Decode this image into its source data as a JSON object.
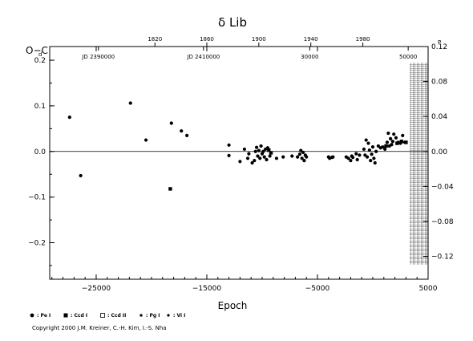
{
  "chart_data": {
    "type": "scatter",
    "title": "δ Lib",
    "xlabel": "Epoch",
    "ylabel_left": "O−C",
    "xlim": [
      -29200,
      5000
    ],
    "ylim_left": [
      -0.28,
      0.23
    ],
    "ylim_right": [
      -0.12,
      0.12
    ],
    "x_ticks": [
      -25000,
      -15000,
      -5000,
      5000
    ],
    "x_tick_labels": [
      "−25000",
      "−15000",
      "−5000",
      "5000"
    ],
    "y_left_ticks": [
      -0.2,
      -0.1,
      0.0,
      0.1,
      0.2
    ],
    "y_left_tick_labels": [
      "−0.2",
      "−0.1",
      "0.0",
      "0.1",
      "0.2"
    ],
    "y_left_unit": "d",
    "y_right_ticks": [
      -0.12,
      -0.08,
      -0.04,
      0.0,
      0.04,
      0.08,
      0.12
    ],
    "y_right_tick_labels": [
      "−0.12",
      "−0.08",
      "−0.04",
      "0.00",
      "0.04",
      "0.08",
      "0.12"
    ],
    "y_right_unit": "P",
    "top_year_ticks": [
      {
        "epoch": -19690,
        "label": "1820"
      },
      {
        "epoch": -15000,
        "label": "1860"
      },
      {
        "epoch": -10300,
        "label": "1900"
      },
      {
        "epoch": -5600,
        "label": "1940"
      },
      {
        "epoch": -900,
        "label": "1980"
      }
    ],
    "jd_labels": [
      {
        "epoch": -24800,
        "label": "JD 2390000"
      },
      {
        "epoch": -15300,
        "label": "JD 2410000"
      },
      {
        "epoch": -5700,
        "label": "30000"
      },
      {
        "epoch": 3200,
        "label": "50000"
      }
    ],
    "hatched_region_x": [
      3300,
      5000
    ],
    "series": [
      {
        "name": ": Pe I",
        "marker": "circle",
        "points": [
          [
            -27400,
            0.075
          ],
          [
            -26400,
            -0.053
          ],
          [
            -21900,
            0.106
          ],
          [
            -20500,
            0.025
          ],
          [
            -18200,
            0.062
          ],
          [
            -17300,
            0.045
          ],
          [
            -16800,
            0.035
          ],
          [
            -13000,
            0.014
          ],
          [
            -13000,
            -0.009
          ],
          [
            -12000,
            -0.022
          ],
          [
            -11600,
            0.005
          ],
          [
            -11300,
            -0.015
          ],
          [
            -11200,
            -0.005
          ],
          [
            -10900,
            -0.025
          ],
          [
            -10700,
            -0.02
          ],
          [
            -10600,
            0.0
          ],
          [
            -10500,
            0.009
          ],
          [
            -10400,
            -0.01
          ],
          [
            -10300,
            0.002
          ],
          [
            -10200,
            -0.015
          ],
          [
            -10100,
            0.012
          ],
          [
            -10000,
            -0.005
          ],
          [
            -9900,
            0.0
          ],
          [
            -9800,
            -0.012
          ],
          [
            -9700,
            0.005
          ],
          [
            -9600,
            -0.018
          ],
          [
            -9500,
            0.008
          ],
          [
            -9300,
            -0.01
          ],
          [
            -8700,
            -0.015
          ],
          [
            -8100,
            -0.012
          ],
          [
            -7300,
            -0.01
          ],
          [
            -6800,
            -0.012
          ],
          [
            -6600,
            -0.006
          ],
          [
            -6500,
            0.002
          ],
          [
            -6400,
            -0.015
          ],
          [
            -6300,
            -0.002
          ],
          [
            -6200,
            -0.02
          ],
          [
            -6100,
            -0.008
          ],
          [
            -6000,
            -0.012
          ],
          [
            -4000,
            -0.012
          ],
          [
            -3900,
            -0.015
          ],
          [
            -3700,
            -0.013
          ],
          [
            -3600,
            -0.012
          ],
          [
            -2400,
            -0.012
          ],
          [
            -2200,
            -0.015
          ],
          [
            -2000,
            -0.02
          ],
          [
            -1900,
            -0.01
          ],
          [
            -1800,
            -0.013
          ],
          [
            -1500,
            -0.005
          ],
          [
            -1400,
            -0.018
          ],
          [
            -1200,
            -0.008
          ],
          [
            -800,
            0.005
          ],
          [
            -700,
            -0.008
          ],
          [
            -600,
            0.025
          ],
          [
            -500,
            -0.012
          ],
          [
            -400,
            0.018
          ],
          [
            -300,
            0.003
          ],
          [
            -200,
            -0.02
          ],
          [
            -100,
            -0.006
          ],
          [
            0,
            0.01
          ],
          [
            100,
            -0.015
          ],
          [
            200,
            -0.025
          ],
          [
            300,
            0.0
          ],
          [
            500,
            0.012
          ],
          [
            700,
            0.008
          ],
          [
            900,
            0.01
          ],
          [
            1100,
            0.005
          ],
          [
            1300,
            0.02
          ],
          [
            1400,
            0.04
          ],
          [
            1500,
            0.012
          ],
          [
            1600,
            0.028
          ],
          [
            1700,
            0.015
          ],
          [
            1800,
            0.022
          ],
          [
            1900,
            0.038
          ],
          [
            2100,
            0.03
          ],
          [
            2300,
            0.02
          ],
          [
            2500,
            0.018
          ],
          [
            2700,
            0.035
          ],
          [
            2900,
            0.02
          ]
        ]
      },
      {
        "name": ": Ccd I",
        "marker": "square",
        "points": [
          [
            -18300,
            -0.082
          ],
          [
            -9400,
            0.003
          ],
          [
            -9200,
            -0.003
          ],
          [
            1200,
            0.012
          ],
          [
            2200,
            0.018
          ],
          [
            2600,
            0.022
          ],
          [
            3000,
            0.02
          ]
        ]
      },
      {
        "name": ": Ccd II",
        "marker": "open-square",
        "points": []
      },
      {
        "name": ": Pg I",
        "marker": "small-square",
        "points": []
      },
      {
        "name": ": Vi I",
        "marker": "small-circle",
        "points": []
      }
    ]
  },
  "copyright": "Copyright 2000 J.M. Kreiner, C.-H. Kim, I.-S. Nha"
}
